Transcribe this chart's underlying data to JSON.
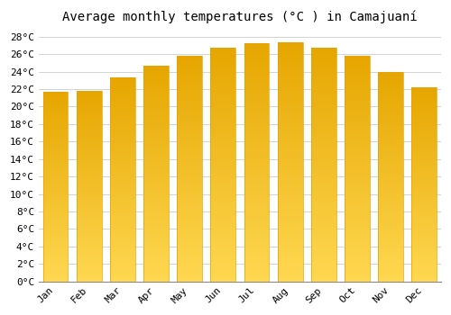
{
  "title": "Average monthly temperatures (°C ) in Camajuaní",
  "months": [
    "Jan",
    "Feb",
    "Mar",
    "Apr",
    "May",
    "Jun",
    "Jul",
    "Aug",
    "Sep",
    "Oct",
    "Nov",
    "Dec"
  ],
  "values": [
    21.7,
    21.8,
    23.3,
    24.7,
    25.8,
    26.7,
    27.2,
    27.3,
    26.7,
    25.8,
    23.9,
    22.2
  ],
  "bar_color_top": "#FFA500",
  "bar_color_bottom": "#FFD080",
  "bar_edge_color": "#E8A000",
  "ylim": [
    0,
    29
  ],
  "ytick_step": 2,
  "background_color": "#ffffff",
  "grid_color": "#cccccc",
  "title_fontsize": 10,
  "tick_fontsize": 8,
  "font_family": "monospace"
}
